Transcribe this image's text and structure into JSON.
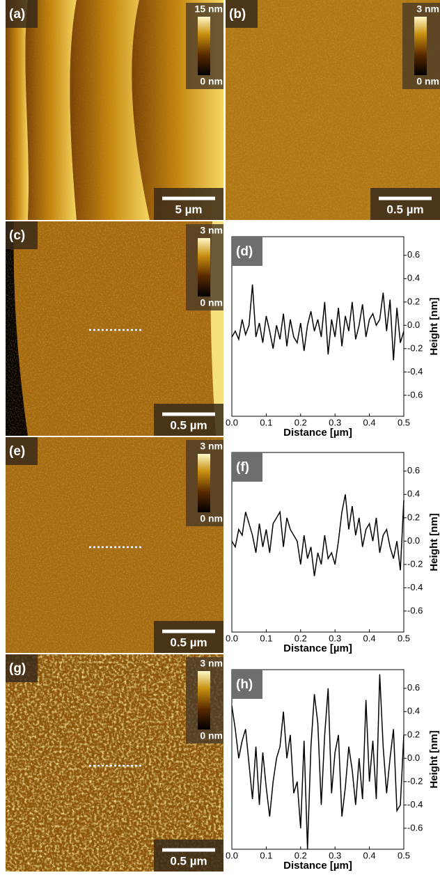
{
  "images": [
    {
      "label": "(a)",
      "scale_max": "15 nm",
      "scale_min": "0 nm",
      "scale_bar": "5 µm"
    },
    {
      "label": "(b)",
      "scale_max": "3 nm",
      "scale_min": "0 nm",
      "scale_bar": "0.5 µm"
    },
    {
      "label": "(c)",
      "scale_max": "3 nm",
      "scale_min": "0 nm",
      "scale_bar": "0.5 µm"
    },
    {
      "label": "(e)",
      "scale_max": "3 nm",
      "scale_min": "0 nm",
      "scale_bar": "0.5 µm"
    },
    {
      "label": "(g)",
      "scale_max": "3 nm",
      "scale_min": "0 nm",
      "scale_bar": "0.5 µm"
    }
  ],
  "chart_data": [
    {
      "type": "line",
      "label": "(d)",
      "xlabel": "Distance [µm]",
      "ylabel": "Height [nm]",
      "color": "#000000",
      "xlim": [
        0,
        0.5
      ],
      "ylim": [
        -0.78,
        0.76
      ],
      "xticks": [
        {
          "value": 0,
          "label": "0.0"
        },
        0.1,
        0.2,
        0.3,
        0.4,
        0.5
      ],
      "yticks": [
        -0.6,
        -0.4,
        -0.2,
        {
          "value": 0,
          "label": "0.0"
        },
        0.2,
        0.4,
        0.6
      ],
      "x": [
        0,
        0.01,
        0.02,
        0.03,
        0.04,
        0.05,
        0.06,
        0.07,
        0.08,
        0.09,
        0.1,
        0.11,
        0.12,
        0.13,
        0.14,
        0.15,
        0.16,
        0.17,
        0.18,
        0.19,
        0.2,
        0.21,
        0.22,
        0.23,
        0.24,
        0.25,
        0.26,
        0.27,
        0.28,
        0.29,
        0.3,
        0.31,
        0.32,
        0.33,
        0.34,
        0.35,
        0.36,
        0.37,
        0.38,
        0.39,
        0.4,
        0.41,
        0.42,
        0.43,
        0.44,
        0.45,
        0.46,
        0.47,
        0.48,
        0.49,
        0.5
      ],
      "values": [
        -0.1,
        -0.05,
        -0.12,
        0.05,
        -0.08,
        0.0,
        0.35,
        -0.1,
        0.02,
        -0.15,
        0.08,
        -0.05,
        -0.2,
        0.0,
        -0.12,
        0.1,
        -0.18,
        0.05,
        -0.1,
        -0.15,
        0.02,
        -0.22,
        0.0,
        0.12,
        -0.05,
        0.05,
        -0.1,
        0.2,
        -0.25,
        0.05,
        -0.1,
        0.15,
        -0.18,
        0.08,
        -0.05,
        0.2,
        -0.12,
        0.0,
        0.18,
        -0.1,
        0.05,
        0.1,
        0.0,
        0.05,
        0.28,
        -0.05,
        0.22,
        -0.3,
        0.15,
        -0.15,
        -0.05
      ]
    },
    {
      "type": "line",
      "label": "(f)",
      "xlabel": "Distance [µm]",
      "ylabel": "Height [nm]",
      "color": "#000000",
      "xlim": [
        0,
        0.5
      ],
      "ylim": [
        -0.78,
        0.76
      ],
      "xticks": [
        {
          "value": 0,
          "label": "0.0"
        },
        0.1,
        0.2,
        0.3,
        0.4,
        0.5
      ],
      "yticks": [
        -0.6,
        -0.4,
        -0.2,
        {
          "value": 0,
          "label": "0.0"
        },
        0.2,
        0.4,
        0.6
      ],
      "x": [
        0,
        0.01,
        0.02,
        0.03,
        0.04,
        0.05,
        0.06,
        0.07,
        0.08,
        0.09,
        0.1,
        0.11,
        0.12,
        0.13,
        0.14,
        0.15,
        0.16,
        0.17,
        0.18,
        0.19,
        0.2,
        0.21,
        0.22,
        0.23,
        0.24,
        0.25,
        0.26,
        0.27,
        0.28,
        0.29,
        0.3,
        0.31,
        0.32,
        0.33,
        0.34,
        0.35,
        0.36,
        0.37,
        0.38,
        0.39,
        0.4,
        0.41,
        0.42,
        0.43,
        0.44,
        0.45,
        0.46,
        0.47,
        0.48,
        0.49,
        0.5
      ],
      "values": [
        0.0,
        -0.05,
        0.1,
        0.05,
        0.25,
        0.15,
        0.05,
        -0.1,
        0.15,
        -0.05,
        0.1,
        -0.1,
        0.15,
        0.2,
        0.25,
        -0.05,
        0.2,
        0.1,
        0.05,
        0.0,
        -0.2,
        0.05,
        -0.15,
        -0.05,
        -0.3,
        -0.1,
        -0.2,
        0.05,
        -0.15,
        -0.1,
        -0.2,
        0.0,
        0.25,
        0.4,
        0.1,
        0.3,
        0.05,
        0.2,
        -0.05,
        0.1,
        0.15,
        0.0,
        0.2,
        -0.1,
        0.05,
        0.1,
        -0.05,
        -0.15,
        0.0,
        -0.25,
        0.35
      ]
    },
    {
      "type": "line",
      "label": "(h)",
      "xlabel": "Distance [µm]",
      "ylabel": "Height [nm]",
      "color": "#000000",
      "xlim": [
        0,
        0.5
      ],
      "ylim": [
        -0.78,
        0.76
      ],
      "xticks": [
        {
          "value": 0,
          "label": "0.0"
        },
        0.1,
        0.2,
        0.3,
        0.4,
        0.5
      ],
      "yticks": [
        -0.6,
        -0.4,
        -0.2,
        {
          "value": 0,
          "label": "0.0"
        },
        0.2,
        0.4,
        0.6
      ],
      "x": [
        0,
        0.01,
        0.02,
        0.03,
        0.04,
        0.05,
        0.06,
        0.07,
        0.08,
        0.09,
        0.1,
        0.11,
        0.12,
        0.13,
        0.14,
        0.15,
        0.16,
        0.17,
        0.18,
        0.19,
        0.2,
        0.21,
        0.22,
        0.23,
        0.24,
        0.25,
        0.26,
        0.27,
        0.28,
        0.29,
        0.3,
        0.31,
        0.32,
        0.33,
        0.34,
        0.35,
        0.36,
        0.37,
        0.38,
        0.39,
        0.4,
        0.41,
        0.42,
        0.43,
        0.44,
        0.45,
        0.46,
        0.47,
        0.48,
        0.49,
        0.5
      ],
      "values": [
        0.45,
        0.25,
        0.0,
        0.15,
        0.25,
        -0.05,
        -0.35,
        0.1,
        -0.4,
        0.05,
        -0.25,
        -0.5,
        -0.2,
        0.0,
        0.1,
        0.4,
        0.0,
        0.2,
        -0.3,
        -0.2,
        -0.6,
        0.15,
        -0.78,
        0.1,
        0.55,
        0.3,
        -0.4,
        0.2,
        0.6,
        -0.3,
        0.05,
        0.2,
        -0.5,
        -0.25,
        0.1,
        -0.1,
        -0.4,
        0.0,
        -0.35,
        0.5,
        -0.2,
        0.15,
        -0.35,
        0.72,
        0.1,
        -0.3,
        0.0,
        0.25,
        -0.45,
        -0.4,
        0.2
      ]
    }
  ]
}
